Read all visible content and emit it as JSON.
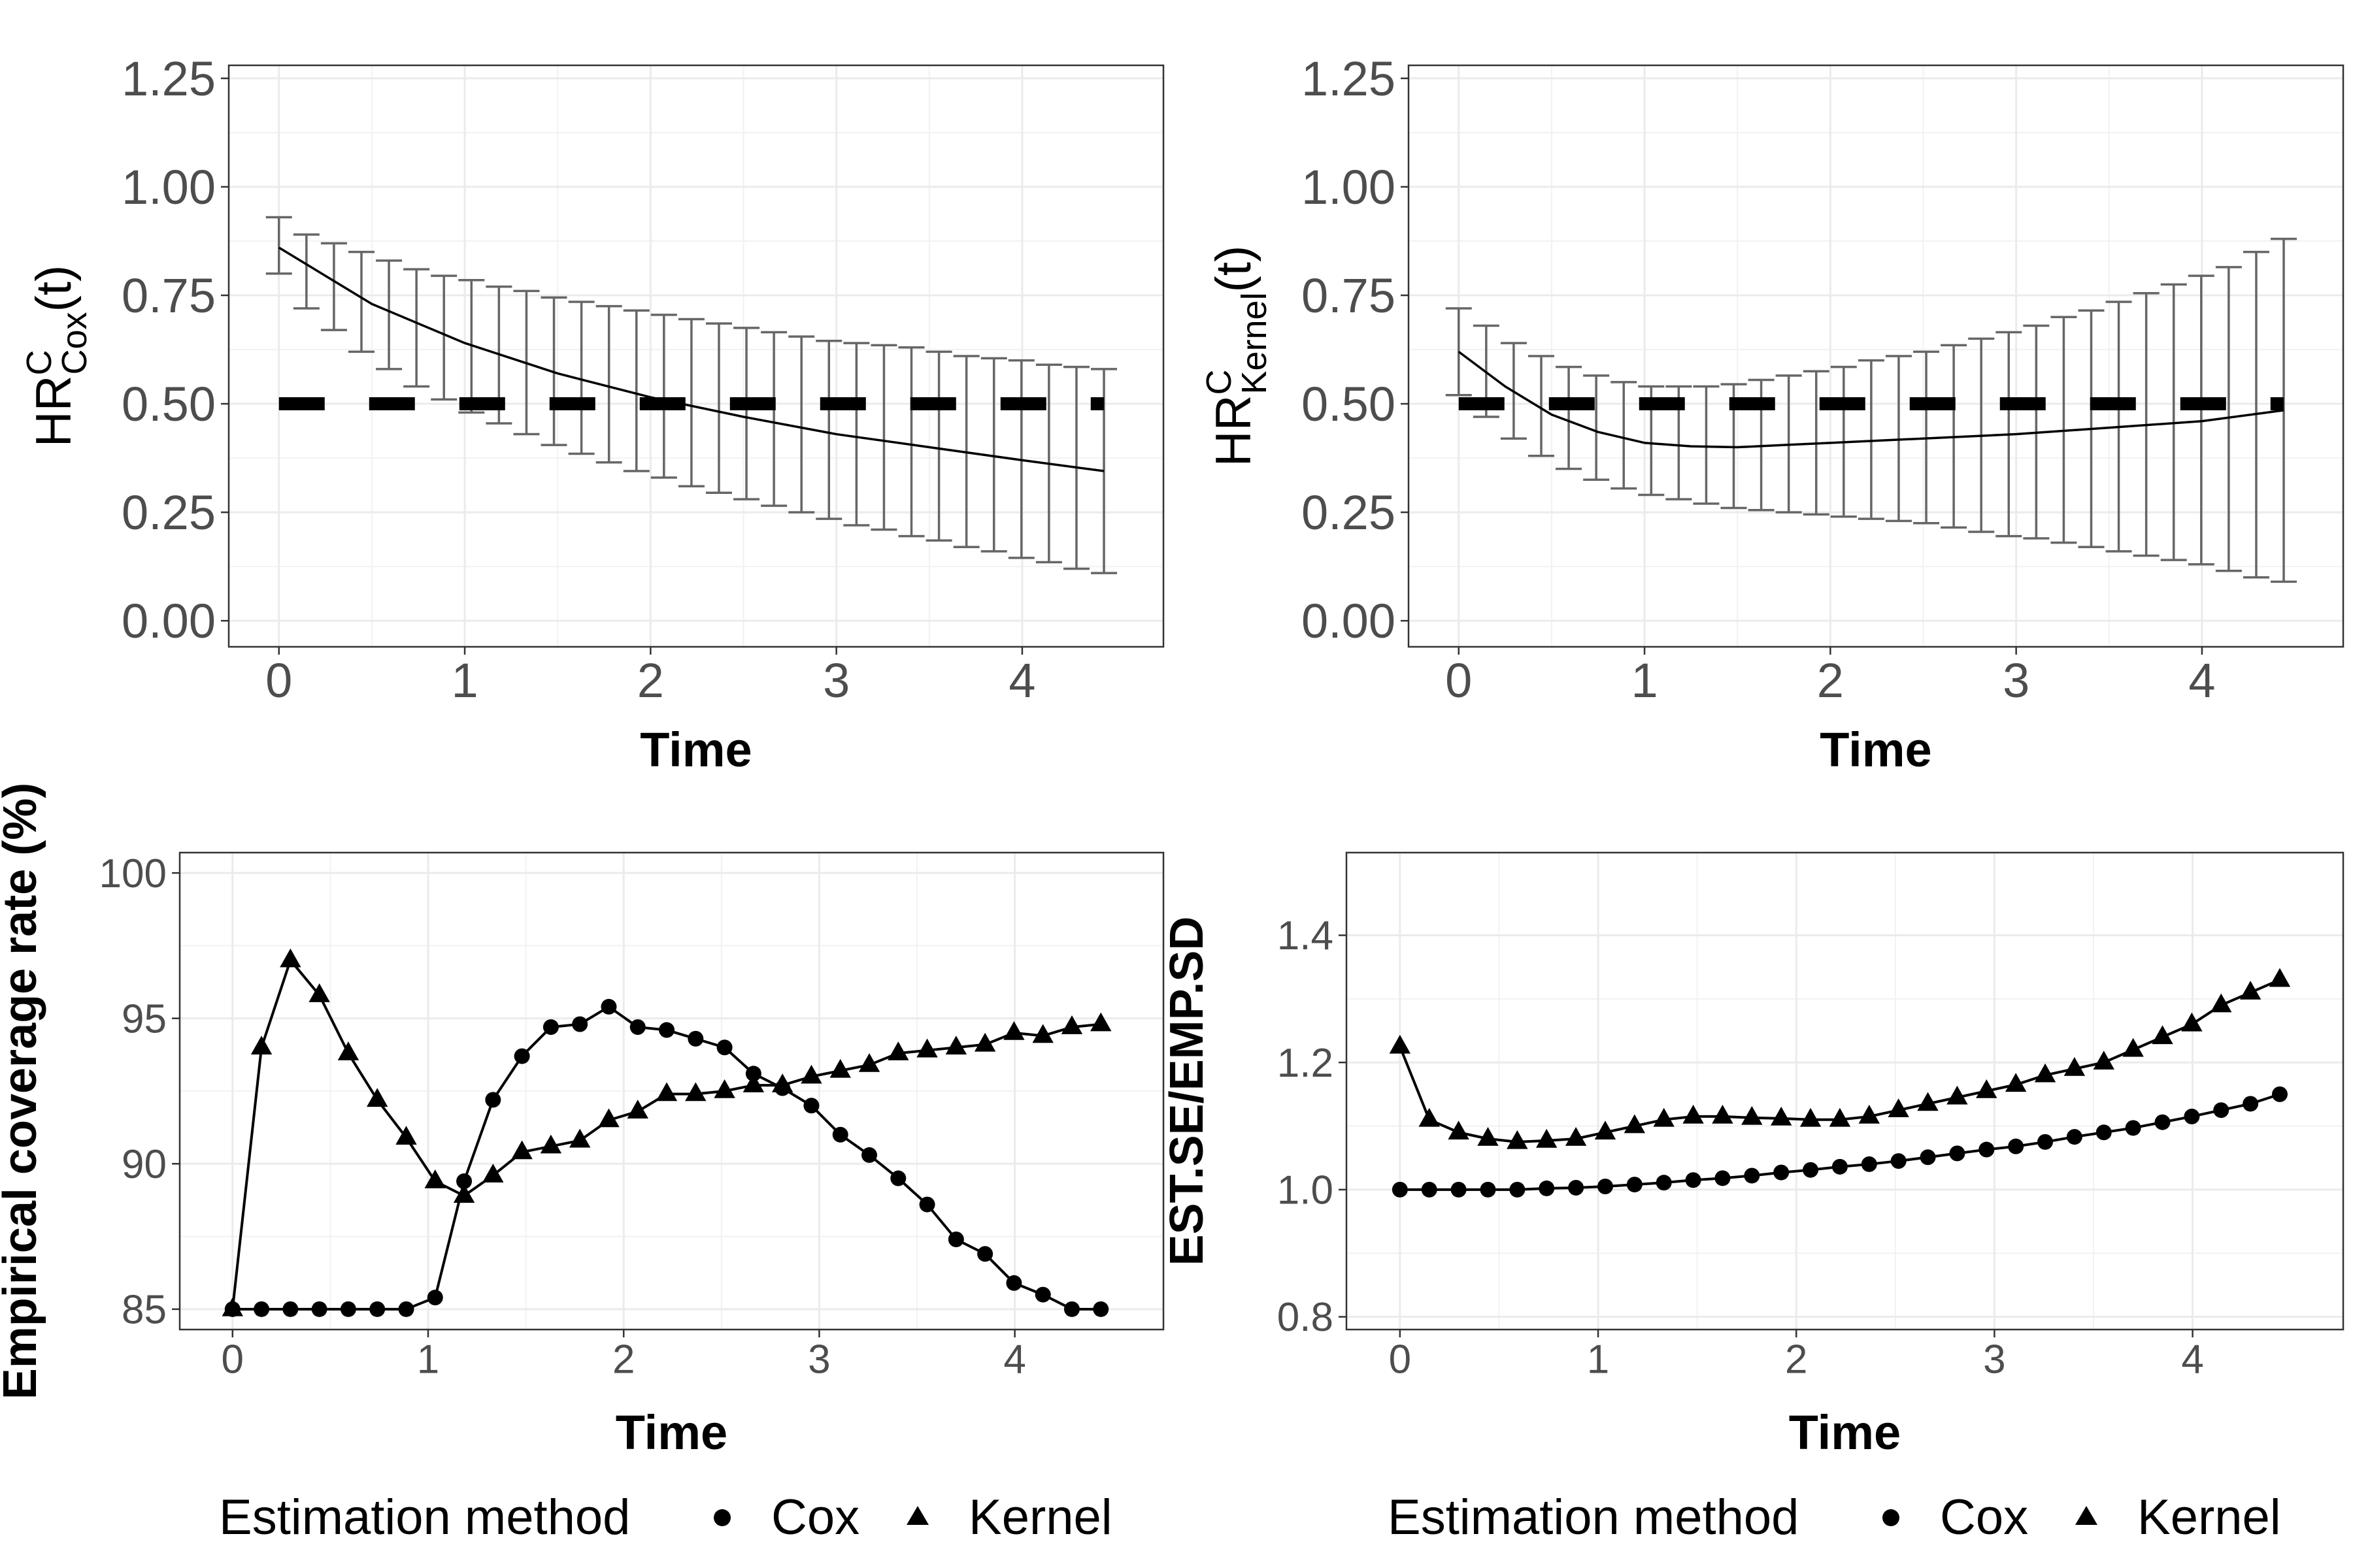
{
  "chart_data": [
    {
      "id": "p1",
      "type": "line",
      "ylabel_main": "HR",
      "ylabel_sup": "C",
      "ylabel_sub": "Cox",
      "ylabel_tail": "(t)",
      "xlabel": "Time",
      "xlim": [
        -0.27,
        4.76
      ],
      "ylim": [
        -0.06,
        1.28
      ],
      "xticks": [
        0,
        1,
        2,
        3,
        4
      ],
      "xtick_labels": [
        "0",
        "1",
        "2",
        "3",
        "4"
      ],
      "yticks": [
        0,
        0.25,
        0.5,
        0.75,
        1.0,
        1.25
      ],
      "ytick_labels": [
        "0.00",
        "0.25",
        "0.50",
        "0.75",
        "1.00",
        "1.25"
      ],
      "reference_line": 0.5,
      "curve": {
        "x": [
          0,
          0.5,
          1,
          1.5,
          2,
          2.5,
          3,
          3.5,
          4,
          4.44
        ],
        "y": [
          0.86,
          0.73,
          0.64,
          0.57,
          0.515,
          0.47,
          0.43,
          0.4,
          0.37,
          0.345
        ]
      },
      "error_bars": {
        "x": [
          0,
          0.148,
          0.296,
          0.444,
          0.592,
          0.74,
          0.888,
          1.036,
          1.184,
          1.332,
          1.48,
          1.628,
          1.776,
          1.924,
          2.072,
          2.22,
          2.368,
          2.516,
          2.664,
          2.812,
          2.96,
          3.108,
          3.256,
          3.404,
          3.552,
          3.7,
          3.848,
          3.996,
          4.144,
          4.292,
          4.44
        ],
        "lower": [
          0.8,
          0.72,
          0.67,
          0.62,
          0.58,
          0.54,
          0.51,
          0.48,
          0.455,
          0.43,
          0.405,
          0.385,
          0.365,
          0.345,
          0.33,
          0.31,
          0.295,
          0.28,
          0.265,
          0.25,
          0.235,
          0.22,
          0.21,
          0.195,
          0.185,
          0.17,
          0.16,
          0.145,
          0.135,
          0.12,
          0.11
        ],
        "upper": [
          0.93,
          0.89,
          0.87,
          0.85,
          0.83,
          0.81,
          0.795,
          0.785,
          0.77,
          0.76,
          0.745,
          0.735,
          0.725,
          0.715,
          0.705,
          0.695,
          0.685,
          0.675,
          0.665,
          0.655,
          0.645,
          0.64,
          0.635,
          0.63,
          0.62,
          0.61,
          0.605,
          0.6,
          0.59,
          0.585,
          0.58
        ]
      }
    },
    {
      "id": "p2",
      "type": "line",
      "ylabel_main": "HR",
      "ylabel_sup": "C",
      "ylabel_sub": "Kernel",
      "ylabel_tail": "(t)",
      "xlabel": "Time",
      "xlim": [
        -0.27,
        4.76
      ],
      "ylim": [
        -0.06,
        1.28
      ],
      "xticks": [
        0,
        1,
        2,
        3,
        4
      ],
      "xtick_labels": [
        "0",
        "1",
        "2",
        "3",
        "4"
      ],
      "yticks": [
        0,
        0.25,
        0.5,
        0.75,
        1.0,
        1.25
      ],
      "ytick_labels": [
        "0.00",
        "0.25",
        "0.50",
        "0.75",
        "1.00",
        "1.25"
      ],
      "reference_line": 0.5,
      "curve": {
        "x": [
          0,
          0.25,
          0.5,
          0.75,
          1,
          1.25,
          1.5,
          1.75,
          2,
          2.5,
          3,
          3.5,
          4,
          4.44
        ],
        "y": [
          0.62,
          0.54,
          0.475,
          0.435,
          0.41,
          0.402,
          0.4,
          0.405,
          0.41,
          0.42,
          0.43,
          0.445,
          0.46,
          0.485
        ]
      },
      "error_bars": {
        "x": [
          0,
          0.148,
          0.296,
          0.444,
          0.592,
          0.74,
          0.888,
          1.036,
          1.184,
          1.332,
          1.48,
          1.628,
          1.776,
          1.924,
          2.072,
          2.22,
          2.368,
          2.516,
          2.664,
          2.812,
          2.96,
          3.108,
          3.256,
          3.404,
          3.552,
          3.7,
          3.848,
          3.996,
          4.144,
          4.292,
          4.44
        ],
        "lower": [
          0.52,
          0.47,
          0.42,
          0.38,
          0.35,
          0.325,
          0.305,
          0.29,
          0.28,
          0.27,
          0.26,
          0.255,
          0.25,
          0.245,
          0.24,
          0.235,
          0.23,
          0.225,
          0.215,
          0.205,
          0.195,
          0.19,
          0.18,
          0.17,
          0.16,
          0.15,
          0.14,
          0.13,
          0.115,
          0.1,
          0.09
        ],
        "upper": [
          0.72,
          0.68,
          0.64,
          0.61,
          0.585,
          0.565,
          0.55,
          0.54,
          0.54,
          0.54,
          0.545,
          0.555,
          0.565,
          0.575,
          0.585,
          0.6,
          0.61,
          0.62,
          0.635,
          0.65,
          0.665,
          0.68,
          0.7,
          0.715,
          0.735,
          0.755,
          0.775,
          0.795,
          0.815,
          0.85,
          0.88
        ]
      }
    },
    {
      "id": "p3",
      "type": "line",
      "ylabel": "Empirical coverage rate (%)",
      "xlabel": "Time",
      "xlim": [
        -0.27,
        4.76
      ],
      "ylim": [
        84.3,
        100.7
      ],
      "xticks": [
        0,
        1,
        2,
        3,
        4
      ],
      "xtick_labels": [
        "0",
        "1",
        "2",
        "3",
        "4"
      ],
      "yticks": [
        85,
        90,
        95,
        100
      ],
      "ytick_labels": [
        "85",
        "90",
        "95",
        "100"
      ],
      "series": [
        {
          "name": "Cox",
          "marker": "circle",
          "x": [
            0,
            0.148,
            0.296,
            0.444,
            0.592,
            0.74,
            0.888,
            1.036,
            1.184,
            1.332,
            1.48,
            1.628,
            1.776,
            1.924,
            2.072,
            2.22,
            2.368,
            2.516,
            2.664,
            2.812,
            2.96,
            3.108,
            3.256,
            3.404,
            3.552,
            3.7,
            3.848,
            3.996,
            4.144,
            4.292,
            4.44
          ],
          "values": [
            85.0,
            85.0,
            85.0,
            85.0,
            85.0,
            85.0,
            85.0,
            85.4,
            89.4,
            92.2,
            93.7,
            94.7,
            94.8,
            95.4,
            94.7,
            94.6,
            94.3,
            94.0,
            93.1,
            92.6,
            92.0,
            91.0,
            90.3,
            89.5,
            88.6,
            87.4,
            86.9,
            85.9,
            85.5,
            85.0,
            85.0
          ]
        },
        {
          "name": "Kernel",
          "marker": "triangle",
          "x": [
            0,
            0.148,
            0.296,
            0.444,
            0.592,
            0.74,
            0.888,
            1.036,
            1.184,
            1.332,
            1.48,
            1.628,
            1.776,
            1.924,
            2.072,
            2.22,
            2.368,
            2.516,
            2.664,
            2.812,
            2.96,
            3.108,
            3.256,
            3.404,
            3.552,
            3.7,
            3.848,
            3.996,
            4.144,
            4.292,
            4.44
          ],
          "values": [
            85.0,
            94.0,
            97.0,
            95.8,
            93.8,
            92.2,
            90.9,
            89.4,
            88.9,
            89.6,
            90.4,
            90.6,
            90.8,
            91.5,
            91.8,
            92.4,
            92.4,
            92.5,
            92.7,
            92.7,
            93.0,
            93.2,
            93.4,
            93.8,
            93.9,
            94.0,
            94.1,
            94.5,
            94.4,
            94.7,
            94.8
          ]
        }
      ]
    },
    {
      "id": "p4",
      "type": "line",
      "ylabel": "EST.SE/EMP.SD",
      "xlabel": "Time",
      "xlim": [
        -0.27,
        4.76
      ],
      "ylim": [
        0.78,
        1.53
      ],
      "xticks": [
        0,
        1,
        2,
        3,
        4
      ],
      "xtick_labels": [
        "0",
        "1",
        "2",
        "3",
        "4"
      ],
      "yticks": [
        0.8,
        1.0,
        1.2,
        1.4
      ],
      "ytick_labels": [
        "0.8",
        "1.0",
        "1.2",
        "1.4"
      ],
      "series": [
        {
          "name": "Cox",
          "marker": "circle",
          "x": [
            0,
            0.148,
            0.296,
            0.444,
            0.592,
            0.74,
            0.888,
            1.036,
            1.184,
            1.332,
            1.48,
            1.628,
            1.776,
            1.924,
            2.072,
            2.22,
            2.368,
            2.516,
            2.664,
            2.812,
            2.96,
            3.108,
            3.256,
            3.404,
            3.552,
            3.7,
            3.848,
            3.996,
            4.144,
            4.292,
            4.44
          ],
          "values": [
            1.0,
            1.0,
            1.0,
            1.0,
            1.0,
            1.002,
            1.003,
            1.005,
            1.008,
            1.011,
            1.015,
            1.018,
            1.022,
            1.027,
            1.031,
            1.036,
            1.04,
            1.045,
            1.051,
            1.057,
            1.063,
            1.068,
            1.075,
            1.083,
            1.09,
            1.097,
            1.106,
            1.115,
            1.125,
            1.135,
            1.15
          ]
        },
        {
          "name": "Kernel",
          "marker": "triangle",
          "x": [
            0,
            0.148,
            0.296,
            0.444,
            0.592,
            0.74,
            0.888,
            1.036,
            1.184,
            1.332,
            1.48,
            1.628,
            1.776,
            1.924,
            2.072,
            2.22,
            2.368,
            2.516,
            2.664,
            2.812,
            2.96,
            3.108,
            3.256,
            3.404,
            3.552,
            3.7,
            3.848,
            3.996,
            4.144,
            4.292,
            4.44
          ],
          "values": [
            1.225,
            1.11,
            1.09,
            1.08,
            1.075,
            1.077,
            1.08,
            1.09,
            1.1,
            1.11,
            1.115,
            1.115,
            1.113,
            1.112,
            1.11,
            1.11,
            1.115,
            1.125,
            1.135,
            1.145,
            1.155,
            1.165,
            1.18,
            1.19,
            1.2,
            1.22,
            1.24,
            1.26,
            1.29,
            1.31,
            1.33
          ]
        }
      ]
    }
  ],
  "legends": [
    {
      "title": "Estimation method",
      "items": [
        {
          "label": "Cox",
          "marker": "circle"
        },
        {
          "label": "Kernel",
          "marker": "triangle"
        }
      ]
    },
    {
      "title": "Estimation method",
      "items": [
        {
          "label": "Cox",
          "marker": "circle"
        },
        {
          "label": "Kernel",
          "marker": "triangle"
        }
      ]
    }
  ]
}
